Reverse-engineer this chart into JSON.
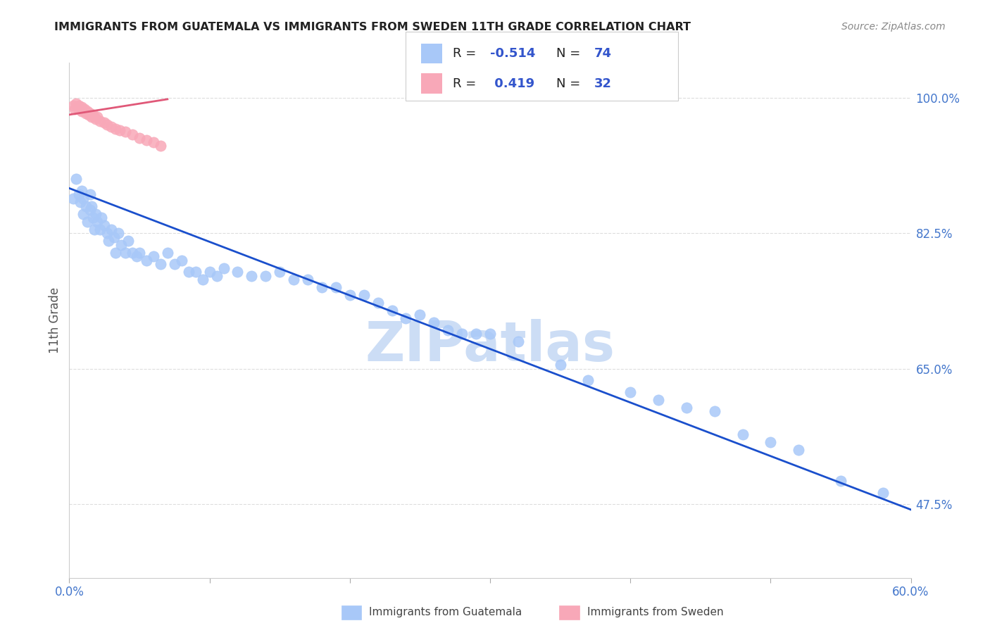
{
  "title": "IMMIGRANTS FROM GUATEMALA VS IMMIGRANTS FROM SWEDEN 11TH GRADE CORRELATION CHART",
  "source": "Source: ZipAtlas.com",
  "ylabel": "11th Grade",
  "ytick_labels": [
    "100.0%",
    "82.5%",
    "65.0%",
    "47.5%"
  ],
  "ytick_values": [
    1.0,
    0.825,
    0.65,
    0.475
  ],
  "xtick_values": [
    0.0,
    0.1,
    0.2,
    0.3,
    0.4,
    0.5,
    0.6
  ],
  "legend_blue_label": "Immigrants from Guatemala",
  "legend_pink_label": "Immigrants from Sweden",
  "R_blue": -0.514,
  "N_blue": 74,
  "R_pink": 0.419,
  "N_pink": 32,
  "blue_color": "#a8c8f8",
  "pink_color": "#f8a8b8",
  "line_blue": "#1a4fcc",
  "line_pink": "#e05878",
  "watermark": "ZIPatlas",
  "watermark_color": "#ccddf5",
  "blue_scatter_x": [
    0.003,
    0.005,
    0.007,
    0.008,
    0.009,
    0.01,
    0.01,
    0.012,
    0.013,
    0.015,
    0.015,
    0.016,
    0.017,
    0.018,
    0.019,
    0.02,
    0.022,
    0.023,
    0.025,
    0.027,
    0.028,
    0.03,
    0.032,
    0.033,
    0.035,
    0.037,
    0.04,
    0.042,
    0.045,
    0.048,
    0.05,
    0.055,
    0.06,
    0.065,
    0.07,
    0.075,
    0.08,
    0.085,
    0.09,
    0.095,
    0.1,
    0.105,
    0.11,
    0.12,
    0.13,
    0.14,
    0.15,
    0.16,
    0.17,
    0.18,
    0.19,
    0.2,
    0.21,
    0.22,
    0.23,
    0.24,
    0.25,
    0.26,
    0.27,
    0.28,
    0.29,
    0.3,
    0.32,
    0.35,
    0.37,
    0.4,
    0.42,
    0.44,
    0.46,
    0.48,
    0.5,
    0.52,
    0.55,
    0.58
  ],
  "blue_scatter_y": [
    0.87,
    0.895,
    0.875,
    0.865,
    0.88,
    0.87,
    0.85,
    0.86,
    0.84,
    0.875,
    0.855,
    0.86,
    0.845,
    0.83,
    0.85,
    0.84,
    0.83,
    0.845,
    0.835,
    0.825,
    0.815,
    0.83,
    0.82,
    0.8,
    0.825,
    0.81,
    0.8,
    0.815,
    0.8,
    0.795,
    0.8,
    0.79,
    0.795,
    0.785,
    0.8,
    0.785,
    0.79,
    0.775,
    0.775,
    0.765,
    0.775,
    0.77,
    0.78,
    0.775,
    0.77,
    0.77,
    0.775,
    0.765,
    0.765,
    0.755,
    0.755,
    0.745,
    0.745,
    0.735,
    0.725,
    0.715,
    0.72,
    0.71,
    0.7,
    0.695,
    0.695,
    0.695,
    0.685,
    0.655,
    0.635,
    0.62,
    0.61,
    0.6,
    0.595,
    0.565,
    0.555,
    0.545,
    0.505,
    0.49
  ],
  "pink_scatter_x": [
    0.003,
    0.004,
    0.005,
    0.006,
    0.007,
    0.007,
    0.008,
    0.009,
    0.009,
    0.01,
    0.011,
    0.012,
    0.013,
    0.014,
    0.015,
    0.016,
    0.017,
    0.018,
    0.019,
    0.02,
    0.022,
    0.025,
    0.027,
    0.03,
    0.033,
    0.036,
    0.04,
    0.045,
    0.05,
    0.055,
    0.06,
    0.065
  ],
  "pink_scatter_y": [
    0.99,
    0.985,
    0.992,
    0.988,
    0.985,
    0.99,
    0.985,
    0.982,
    0.988,
    0.983,
    0.985,
    0.98,
    0.982,
    0.978,
    0.98,
    0.975,
    0.978,
    0.975,
    0.972,
    0.975,
    0.97,
    0.968,
    0.965,
    0.962,
    0.96,
    0.958,
    0.956,
    0.952,
    0.948,
    0.945,
    0.942,
    0.938
  ],
  "blue_line_x": [
    0.0,
    0.6
  ],
  "blue_line_y": [
    0.883,
    0.468
  ],
  "pink_line_x": [
    0.0,
    0.07
  ],
  "pink_line_y": [
    0.978,
    0.998
  ]
}
